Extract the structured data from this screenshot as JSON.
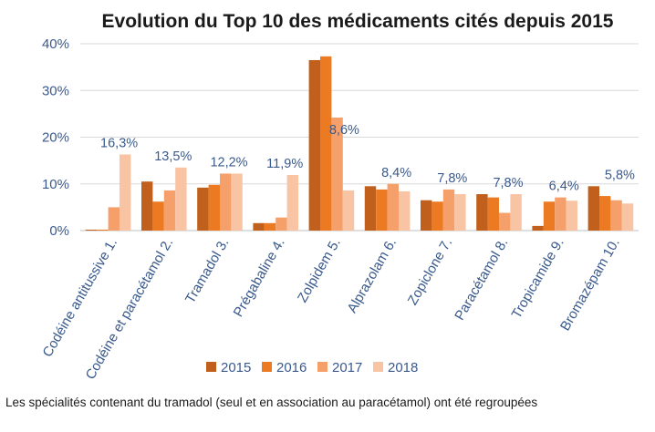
{
  "chart_data": {
    "type": "bar",
    "title": "Evolution du Top 10 des médicaments cités depuis 2015",
    "xlabel": "",
    "ylabel": "",
    "ylim": [
      0,
      40
    ],
    "yticks": [
      "0%",
      "10%",
      "20%",
      "30%",
      "40%"
    ],
    "ytick_values": [
      0,
      10,
      20,
      30,
      40
    ],
    "grid": true,
    "legend_position": "bottom",
    "categories": [
      "Codéine antitussive 1.",
      "Codéine et paracétamol 2.",
      "Tramadol 3.",
      "Prégabaline 4.",
      "Zolpidem 5.",
      "Alprazolam 6.",
      "Zopiclone 7.",
      "Paracétamol 8.",
      "Tropicamide 9.",
      "Bromazépam 10."
    ],
    "series": [
      {
        "name": "2015",
        "color": "#c0601c",
        "values": [
          0.2,
          10.5,
          9.2,
          1.6,
          36.5,
          9.5,
          6.5,
          7.8,
          1.0,
          9.5
        ]
      },
      {
        "name": "2016",
        "color": "#ec7a22",
        "values": [
          0.2,
          6.2,
          9.8,
          1.6,
          37.3,
          8.8,
          6.2,
          7.1,
          6.2,
          7.4
        ]
      },
      {
        "name": "2017",
        "color": "#f5a06a",
        "values": [
          5.0,
          8.6,
          12.2,
          2.8,
          24.2,
          10.0,
          8.8,
          3.8,
          7.1,
          6.5
        ]
      },
      {
        "name": "2018",
        "color": "#f8c4a4",
        "values": [
          16.3,
          13.5,
          12.2,
          11.9,
          8.6,
          8.4,
          7.8,
          7.8,
          6.4,
          5.8
        ]
      }
    ],
    "data_labels": [
      "16,3%",
      "13,5%",
      "12,2%",
      "11,9%",
      "8,6%",
      "8,4%",
      "7,8%",
      "7,8%",
      "6,4%",
      "5,8%"
    ]
  },
  "footnote": "Les spécialités contenant du tramadol (seul et en association au paracétamol) ont été regroupées"
}
